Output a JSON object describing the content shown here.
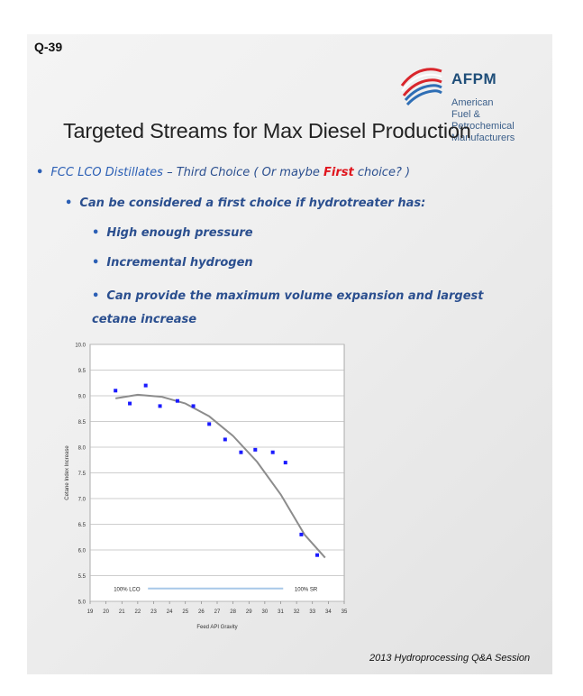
{
  "slide": {
    "question_number": "Q-39",
    "title": "Targeted Streams for Max Diesel Production",
    "footer": "2013 Hydroprocessing Q&A Session"
  },
  "logo": {
    "brand": "AFPM",
    "line1": "American",
    "line2": "Fuel & Petrochemical",
    "line3": "Manufacturers",
    "colors": {
      "red": "#d9262c",
      "blue": "#2e6eb5"
    }
  },
  "bullets": {
    "b1_lead": "FCC LCO Distillates",
    "b1_rest": " – Third Choice  ( Or maybe ",
    "b1_first": "First",
    "b1_end": " choice? )",
    "b2": "Can be considered a first choice if hydrotreater has:",
    "b3": "High enough pressure",
    "b4": "Incremental hydrogen",
    "b5": "Can provide the maximum volume expansion and largest cetane increase"
  },
  "chart_data": {
    "type": "scatter",
    "xlabel": "Feed API Gravity",
    "ylabel": "Cetane Index Increase",
    "xlim": [
      19,
      35
    ],
    "ylim": [
      5.0,
      10.0
    ],
    "xticks": [
      "19",
      "20",
      "21",
      "22",
      "23",
      "24",
      "25",
      "26",
      "27",
      "28",
      "29",
      "30",
      "31",
      "32",
      "33",
      "34",
      "35"
    ],
    "yticks": [
      "5.0",
      "5.5",
      "6.0",
      "6.5",
      "7.0",
      "7.5",
      "8.0",
      "8.5",
      "9.0",
      "9.5",
      "10.0"
    ],
    "grid": true,
    "points": [
      {
        "x": 20.6,
        "y": 9.1
      },
      {
        "x": 21.5,
        "y": 8.85
      },
      {
        "x": 22.5,
        "y": 9.2
      },
      {
        "x": 23.4,
        "y": 8.8
      },
      {
        "x": 24.5,
        "y": 8.9
      },
      {
        "x": 25.5,
        "y": 8.8
      },
      {
        "x": 26.5,
        "y": 8.45
      },
      {
        "x": 27.5,
        "y": 8.15
      },
      {
        "x": 28.5,
        "y": 7.9
      },
      {
        "x": 29.4,
        "y": 7.95
      },
      {
        "x": 30.5,
        "y": 7.9
      },
      {
        "x": 31.3,
        "y": 7.7
      },
      {
        "x": 32.3,
        "y": 6.3
      },
      {
        "x": 33.3,
        "y": 5.9
      }
    ],
    "trend": [
      {
        "x": 20.6,
        "y": 8.95
      },
      {
        "x": 22.0,
        "y": 9.02
      },
      {
        "x": 23.5,
        "y": 8.98
      },
      {
        "x": 25.0,
        "y": 8.85
      },
      {
        "x": 26.5,
        "y": 8.6
      },
      {
        "x": 28.0,
        "y": 8.22
      },
      {
        "x": 29.5,
        "y": 7.72
      },
      {
        "x": 31.0,
        "y": 7.08
      },
      {
        "x": 32.5,
        "y": 6.3
      },
      {
        "x": 33.8,
        "y": 5.85
      }
    ],
    "annotation": {
      "left_label": "100% LCO",
      "right_label": "100% SR",
      "y": 5.25,
      "x_start": 20.6,
      "x_end": 33.2
    },
    "colors": {
      "points": "#1a1aff",
      "trend": "#8c8c8c",
      "annotation_line": "#a8c8e8"
    }
  }
}
